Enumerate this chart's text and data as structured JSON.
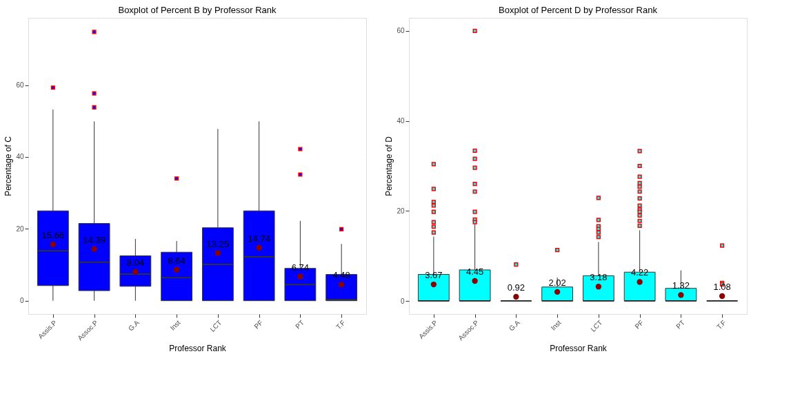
{
  "chart_data": [
    {
      "type": "box",
      "title": "Boxplot of Percent B by Professor Rank",
      "xlabel": "Professor Rank",
      "ylabel": "Percentage of C",
      "categories": [
        "Assis.P",
        "Assoc.P",
        "G.A",
        "Inst",
        "LCT",
        "PF",
        "PT",
        "T.F"
      ],
      "ylim": [
        -3.7,
        78.7
      ],
      "yticks": [
        0,
        20,
        40,
        60
      ],
      "grid": true,
      "series": [
        {
          "color": "#0000ff",
          "value_labels": [
            "15.66",
            "14.39",
            "8.04",
            "8.64",
            "13.25",
            "14.74",
            "6.74",
            "4.48"
          ],
          "boxes": [
            {
              "low": 0,
              "q1": 4.2,
              "median": 13.9,
              "q3": 25,
              "high": 53.2,
              "mean": 15.66,
              "outliers": [
                59.3
              ]
            },
            {
              "low": 0,
              "q1": 2.8,
              "median": 10.7,
              "q3": 21.5,
              "high": 49.9,
              "mean": 14.39,
              "outliers": [
                74.8,
                57.7,
                53.8
              ]
            },
            {
              "low": 0,
              "q1": 4.0,
              "median": 7.4,
              "q3": 12.5,
              "high": 17.2,
              "mean": 8.04
            },
            {
              "low": 0,
              "q1": 0,
              "median": 6.4,
              "q3": 13.5,
              "high": 16.6,
              "mean": 8.64,
              "outliers": [
                34.0
              ]
            },
            {
              "low": 0,
              "q1": 0,
              "median": 10.1,
              "q3": 20.3,
              "high": 47.8,
              "mean": 13.25
            },
            {
              "low": 0,
              "q1": 0,
              "median": 12.2,
              "q3": 25,
              "high": 49.9,
              "mean": 14.74
            },
            {
              "low": 0,
              "q1": 0,
              "median": 4.5,
              "q3": 9.0,
              "high": 22.2,
              "mean": 6.74,
              "outliers": [
                42.2,
                35.1
              ]
            },
            {
              "low": 0,
              "q1": 0,
              "median": 0.3,
              "q3": 7.3,
              "high": 15.8,
              "mean": 4.48,
              "outliers": [
                19.9
              ]
            }
          ]
        }
      ]
    },
    {
      "type": "box",
      "title": "Boxplot of Percent D by Professor Rank",
      "xlabel": "Professor Rank",
      "ylabel": "Percentage of D",
      "categories": [
        "Assis.P",
        "Assoc.P",
        "G.A",
        "Inst",
        "LCT",
        "PF",
        "PT",
        "T.F"
      ],
      "ylim": [
        -2.9,
        62.9
      ],
      "yticks": [
        0,
        20,
        40,
        60
      ],
      "grid": true,
      "series": [
        {
          "color": "#00ffff",
          "value_labels": [
            "3.67",
            "4.45",
            "0.92",
            "2.02",
            "3.18",
            "4.22",
            "1.32",
            "1.08"
          ],
          "boxes": [
            {
              "low": 0,
              "q1": 0,
              "median": 0,
              "q3": 5.9,
              "high": 14.3,
              "mean": 3.67,
              "outliers": [
                30.4,
                24.9,
                22.0,
                21.2,
                19.8,
                17.5,
                16.5,
                15.2
              ]
            },
            {
              "low": 0,
              "q1": 0,
              "median": 0,
              "q3": 6.9,
              "high": 17.0,
              "mean": 4.45,
              "outliers": [
                60,
                33.4,
                31.6,
                29.6,
                26.0,
                24.3,
                19.8,
                18.1,
                17.5
              ]
            },
            {
              "low": 0,
              "q1": 0,
              "median": 0,
              "q3": 0,
              "high": 0,
              "mean": 0.92,
              "outliers": [
                8.1
              ]
            },
            {
              "low": 0,
              "q1": 0,
              "median": 0,
              "q3": 3.1,
              "high": 5.2,
              "mean": 2.02,
              "outliers": [
                11.3
              ]
            },
            {
              "low": 0,
              "q1": 0,
              "median": 0,
              "q3": 5.6,
              "high": 13.1,
              "mean": 3.18,
              "outliers": [
                22.9,
                18.0,
                16.6,
                16.0,
                15.2,
                14.2
              ]
            },
            {
              "low": 0,
              "q1": 0,
              "median": 0,
              "q3": 6.4,
              "high": 15.7,
              "mean": 4.22,
              "outliers": [
                33.3,
                30.0,
                27.6,
                26.2,
                25.4,
                24.3,
                22.8,
                21.2,
                20.3,
                19.8,
                19.0,
                17.8,
                16.7
              ]
            },
            {
              "low": 0,
              "q1": 0,
              "median": 0,
              "q3": 2.8,
              "high": 6.8,
              "mean": 1.32
            },
            {
              "low": 0,
              "q1": 0,
              "median": 0,
              "q3": 0,
              "high": 0,
              "mean": 1.08,
              "outliers": [
                12.3,
                4.0,
                3.7
              ]
            }
          ]
        }
      ]
    }
  ]
}
